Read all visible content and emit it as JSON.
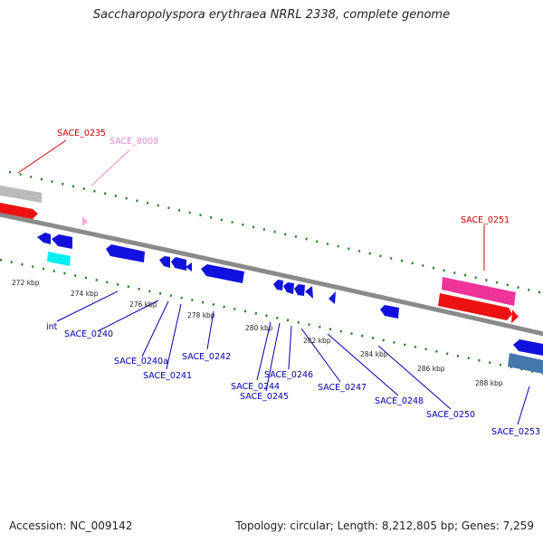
{
  "title": "Saccharopolyspora erythraea NRRL 2338, complete genome",
  "footer": {
    "accession": "Accession: NC_009142",
    "summary": "Topology: circular; Length: 8,212,805 bp; Genes: 7,259"
  },
  "colors": {
    "backbone": "#8a8a8a",
    "forward_gene": "#ee1111",
    "reverse_gene": "#1111dd",
    "tick": "#1c7c1c",
    "label_red": "#cc0000",
    "label_pink": "#ee88cc",
    "label_blue": "#0000aa"
  },
  "ticks": [
    "272 kbp",
    "274 kbp",
    "276 kbp",
    "278 kbp",
    "280 kbp",
    "282 kbp",
    "284 kbp",
    "286 kbp",
    "288 kbp"
  ],
  "gene_labels": {
    "top": [
      "SACE_0235",
      "SACE_8009",
      "SACE_0251"
    ],
    "bottom": [
      "int",
      "SACE_0240",
      "SACE_0240a",
      "SACE_0241",
      "SACE_0242",
      "SACE_0244",
      "SACE_0245",
      "SACE_0246",
      "SACE_0247",
      "SACE_0248",
      "SACE_0250",
      "SACE_0253"
    ]
  }
}
